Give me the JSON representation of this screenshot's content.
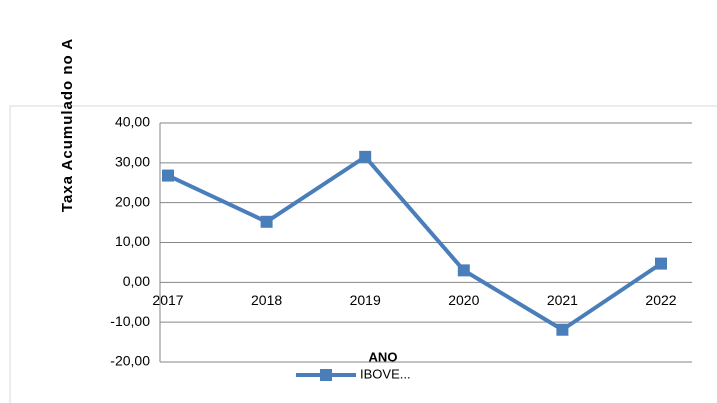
{
  "chart_data": {
    "type": "line",
    "y_label": "Taxa Acumulado no A",
    "x_label": "ANO",
    "categories": [
      "2017",
      "2018",
      "2019",
      "2020",
      "2021",
      "2022"
    ],
    "series": [
      {
        "name": "IBOVE...",
        "color": "#4a7ebb",
        "values": [
          26.8,
          15.2,
          31.5,
          3.0,
          -11.9,
          4.7
        ]
      }
    ],
    "ylim": [
      -20,
      40
    ],
    "yticks": [
      {
        "value": -20,
        "label": "-20,00"
      },
      {
        "value": -10,
        "label": "-10,00"
      },
      {
        "value": 0,
        "label": "0,00"
      },
      {
        "value": 10,
        "label": "10,00"
      },
      {
        "value": 20,
        "label": "20,00"
      },
      {
        "value": 30,
        "label": "30,00"
      },
      {
        "value": 40,
        "label": "40,00"
      }
    ],
    "grid": true
  }
}
